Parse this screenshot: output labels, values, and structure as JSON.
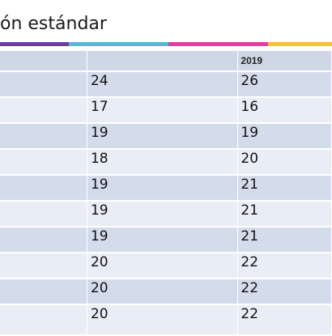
{
  "title": "ón estándar",
  "color_bar": [
    {
      "color": "#6b3fa0",
      "width": 85
    },
    {
      "color": "#5bb6d6",
      "width": 123
    },
    {
      "color": "#e23ea0",
      "width": 123
    },
    {
      "color": "#f5c332",
      "width": 79
    }
  ],
  "table": {
    "header": [
      "",
      "",
      "2019"
    ],
    "rows": [
      [
        "",
        "24",
        "26"
      ],
      [
        "",
        "17",
        "16"
      ],
      [
        "",
        "19",
        "19"
      ],
      [
        "",
        "18",
        "20"
      ],
      [
        "",
        "19",
        "21"
      ],
      [
        "",
        "19",
        "21"
      ],
      [
        "",
        "19",
        "21"
      ],
      [
        "",
        "20",
        "22"
      ],
      [
        "",
        "20",
        "22"
      ],
      [
        "",
        "20",
        "22"
      ]
    ]
  }
}
